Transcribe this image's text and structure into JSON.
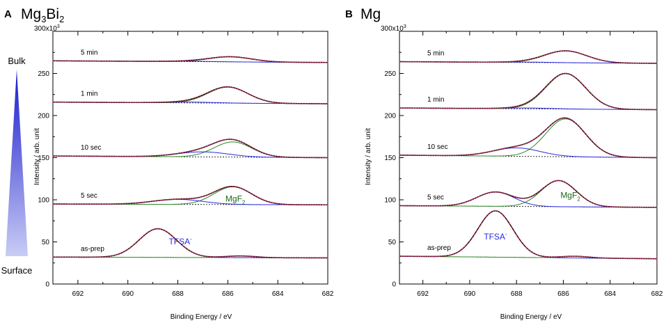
{
  "legend": {
    "top_label": "Bulk",
    "bottom_label": "Surface"
  },
  "colors": {
    "fit_total": "#4a0f0f",
    "data_dots": "#c83a8a",
    "component_blue": "#2a2ae0",
    "component_green": "#2a8a2a",
    "baseline_black": "#000000",
    "tfsa_text": "#2a2ae0",
    "mgf2_text": "#1a6a1a",
    "arrow_top": "#1a1acc",
    "arrow_bottom": "#c8ccf4"
  },
  "chart_data": [
    {
      "type": "line",
      "panel_label": "A",
      "title_main": "Mg",
      "title_sub1": "3",
      "title_mid": "Bi",
      "title_sub2": "2",
      "xlabel": "Binding Energy / eV",
      "ylabel": "Intensity / arb. unit",
      "xlim": [
        693,
        682
      ],
      "ylim": [
        0,
        300000
      ],
      "xticks": [
        692,
        690,
        688,
        686,
        684,
        682
      ],
      "xtick_labels": [
        "692",
        "690",
        "688",
        "686",
        "684",
        "682"
      ],
      "yticks": [
        0,
        50000,
        100000,
        150000,
        200000,
        250000,
        300000
      ],
      "ytick_labels": [
        "0",
        "50",
        "100",
        "150",
        "200",
        "250",
        "300x10"
      ],
      "ytick_top_exp": "3",
      "annotations": [
        {
          "text": "TFSA",
          "sup": "-",
          "x": 687.9,
          "y": 47000,
          "color": "tfsa_text"
        },
        {
          "text": "MgF",
          "sub": "2",
          "x": 685.7,
          "y": 98000,
          "color": "mgf2_text"
        }
      ],
      "spectra": [
        {
          "label": "as-prep",
          "baseline": [
            32000,
            31000
          ],
          "peaks": [
            {
              "component": "blue",
              "center": 688.8,
              "height": 34000,
              "width": 0.75
            },
            {
              "component": "green",
              "center": 685.5,
              "height": 2000,
              "width": 0.6
            }
          ]
        },
        {
          "label": "5 sec",
          "baseline": [
            95000,
            94000
          ],
          "peaks": [
            {
              "component": "blue",
              "center": 688.0,
              "height": 6000,
              "width": 1.0
            },
            {
              "component": "green",
              "center": 685.8,
              "height": 21000,
              "width": 0.75
            }
          ]
        },
        {
          "label": "10 sec",
          "baseline": [
            152000,
            150000
          ],
          "peaks": [
            {
              "component": "blue",
              "center": 687.0,
              "height": 6000,
              "width": 1.0
            },
            {
              "component": "green",
              "center": 685.8,
              "height": 18000,
              "width": 0.75
            }
          ]
        },
        {
          "label": "1 min",
          "baseline": [
            216000,
            214000
          ],
          "peaks": [
            {
              "component": "blue",
              "center": 687.5,
              "height": 1000,
              "width": 1.0
            },
            {
              "component": "green",
              "center": 686.0,
              "height": 19000,
              "width": 0.8
            }
          ]
        },
        {
          "label": "5 min",
          "baseline": [
            265000,
            263000
          ],
          "peaks": [
            {
              "component": "blue",
              "center": 687.5,
              "height": 500,
              "width": 1.0
            },
            {
              "component": "green",
              "center": 685.9,
              "height": 6000,
              "width": 0.85
            }
          ]
        }
      ]
    },
    {
      "type": "line",
      "panel_label": "B",
      "title_main": "Mg",
      "title_sub1": "",
      "title_mid": "",
      "title_sub2": "",
      "xlabel": "Binding Energy / eV",
      "ylabel": "Intensity / arb. unit",
      "xlim": [
        693,
        682
      ],
      "ylim": [
        0,
        300000
      ],
      "xticks": [
        692,
        690,
        688,
        686,
        684,
        682
      ],
      "xtick_labels": [
        "692",
        "690",
        "688",
        "686",
        "684",
        "682"
      ],
      "yticks": [
        0,
        50000,
        100000,
        150000,
        200000,
        250000,
        300000
      ],
      "ytick_labels": [
        "0",
        "50",
        "100",
        "150",
        "200",
        "250",
        "300x10"
      ],
      "ytick_top_exp": "3",
      "annotations": [
        {
          "text": "TFSA",
          "sup": "-",
          "x": 688.9,
          "y": 53000,
          "color": "tfsa_text"
        },
        {
          "text": "MgF",
          "sub": "2",
          "x": 685.7,
          "y": 102000,
          "color": "mgf2_text"
        }
      ],
      "spectra": [
        {
          "label": "as-prep",
          "baseline": [
            33000,
            30000
          ],
          "peaks": [
            {
              "component": "blue",
              "center": 688.9,
              "height": 55000,
              "width": 0.75
            },
            {
              "component": "green",
              "center": 685.5,
              "height": 2000,
              "width": 0.6
            }
          ]
        },
        {
          "label": "5 sec",
          "baseline": [
            93000,
            91000
          ],
          "peaks": [
            {
              "component": "blue",
              "center": 688.9,
              "height": 17000,
              "width": 0.8
            },
            {
              "component": "green",
              "center": 686.2,
              "height": 31000,
              "width": 0.75
            }
          ]
        },
        {
          "label": "10 sec",
          "baseline": [
            153000,
            150000
          ],
          "peaks": [
            {
              "component": "blue",
              "center": 688.0,
              "height": 10000,
              "width": 1.0
            },
            {
              "component": "green",
              "center": 685.9,
              "height": 45000,
              "width": 0.85
            }
          ]
        },
        {
          "label": "1 min",
          "baseline": [
            209000,
            207000
          ],
          "peaks": [
            {
              "component": "blue",
              "center": 687.5,
              "height": 1000,
              "width": 1.0
            },
            {
              "component": "green",
              "center": 685.9,
              "height": 42000,
              "width": 0.85
            }
          ]
        },
        {
          "label": "5 min",
          "baseline": [
            264000,
            262000
          ],
          "peaks": [
            {
              "component": "blue",
              "center": 687.5,
              "height": 500,
              "width": 1.0
            },
            {
              "component": "green",
              "center": 685.9,
              "height": 14000,
              "width": 0.9
            }
          ]
        }
      ]
    }
  ]
}
